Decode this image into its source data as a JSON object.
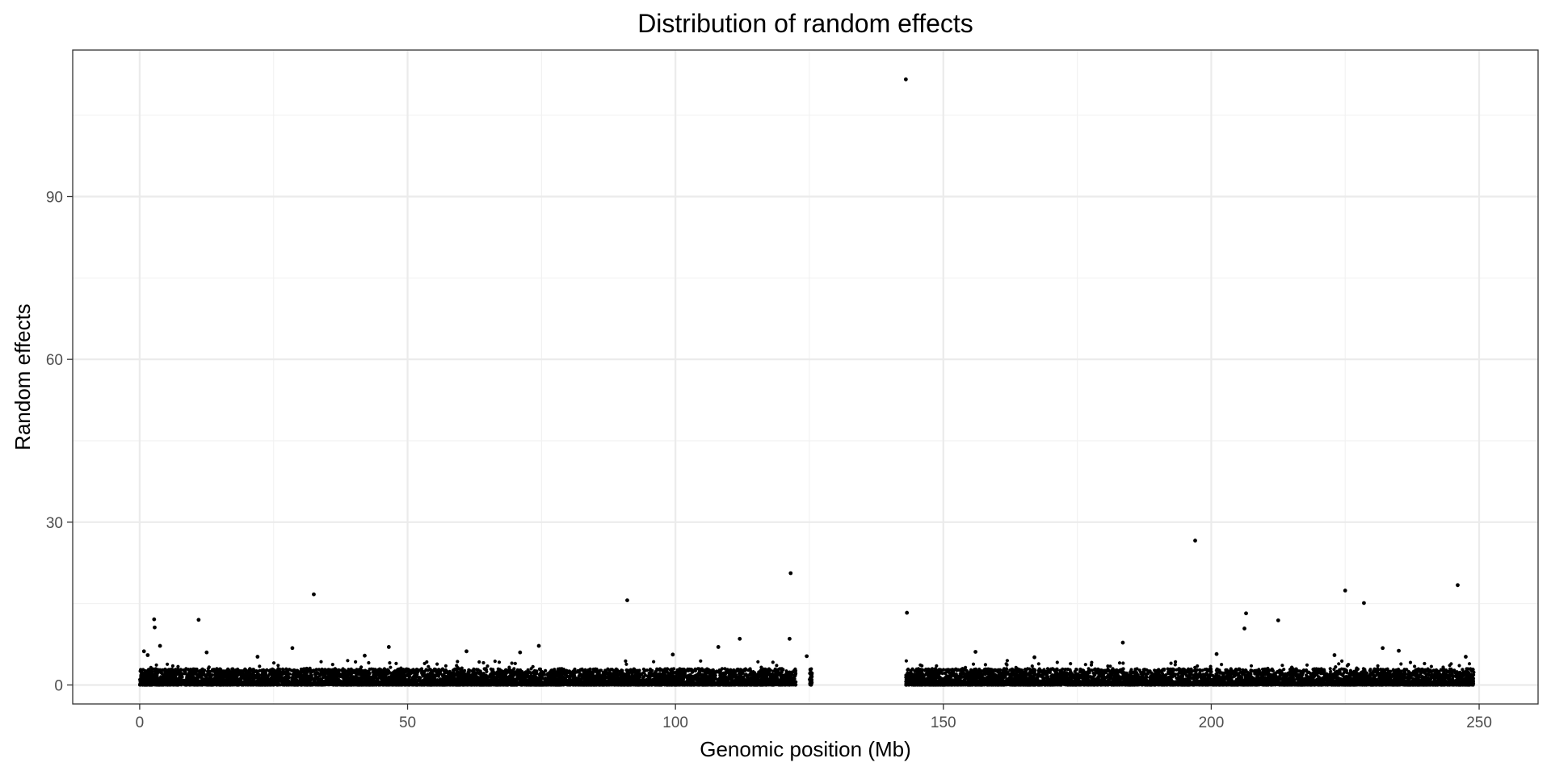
{
  "chart_data": {
    "type": "scatter",
    "title": "Distribution of random effects",
    "xlabel": "Genomic position (Mb)",
    "ylabel": "Random effects",
    "xlim": [
      -12.5,
      261
    ],
    "ylim": [
      -3.5,
      117
    ],
    "x_ticks": [
      0,
      50,
      100,
      150,
      200,
      250
    ],
    "y_ticks": [
      0,
      30,
      60,
      90
    ],
    "x_minor_ticks": [
      25,
      75,
      125,
      175,
      225
    ],
    "y_minor_ticks": [
      15,
      45,
      75,
      105
    ],
    "grid": true,
    "legend": "none",
    "point_color": "#000000",
    "segments_dense": [
      {
        "x_range": [
          0,
          122.5
        ],
        "y_typical_max": 3
      },
      {
        "x_range": [
          125,
          125.5
        ],
        "y_typical_max": 3
      },
      {
        "x_range": [
          143,
          249
        ],
        "y_typical_max": 3
      }
    ],
    "outliers": [
      {
        "x": 143.0,
        "y": 111.6
      },
      {
        "x": 197.0,
        "y": 26.6
      },
      {
        "x": 121.5,
        "y": 20.6
      },
      {
        "x": 246.0,
        "y": 18.4
      },
      {
        "x": 225.0,
        "y": 17.4
      },
      {
        "x": 32.5,
        "y": 16.7
      },
      {
        "x": 91.0,
        "y": 15.6
      },
      {
        "x": 228.5,
        "y": 15.1
      },
      {
        "x": 143.2,
        "y": 13.3
      },
      {
        "x": 206.5,
        "y": 13.2
      },
      {
        "x": 2.7,
        "y": 12.1
      },
      {
        "x": 11.0,
        "y": 12.0
      },
      {
        "x": 212.5,
        "y": 11.9
      },
      {
        "x": 2.8,
        "y": 10.6
      },
      {
        "x": 206.2,
        "y": 10.4
      },
      {
        "x": 112.0,
        "y": 8.5
      },
      {
        "x": 121.3,
        "y": 8.5
      },
      {
        "x": 183.5,
        "y": 7.8
      },
      {
        "x": 3.8,
        "y": 7.2
      },
      {
        "x": 46.5,
        "y": 7.0
      },
      {
        "x": 74.5,
        "y": 7.2
      },
      {
        "x": 108.0,
        "y": 7.0
      },
      {
        "x": 28.5,
        "y": 6.8
      },
      {
        "x": 232.0,
        "y": 6.8
      },
      {
        "x": 0.8,
        "y": 6.2
      },
      {
        "x": 12.5,
        "y": 6.0
      },
      {
        "x": 61.0,
        "y": 6.2
      },
      {
        "x": 71.0,
        "y": 6.0
      },
      {
        "x": 156.0,
        "y": 6.1
      },
      {
        "x": 235.0,
        "y": 6.3
      },
      {
        "x": 1.5,
        "y": 5.5
      },
      {
        "x": 22.0,
        "y": 5.2
      },
      {
        "x": 42.0,
        "y": 5.4
      },
      {
        "x": 99.5,
        "y": 5.6
      },
      {
        "x": 124.5,
        "y": 5.3
      },
      {
        "x": 167.0,
        "y": 5.1
      },
      {
        "x": 201.0,
        "y": 5.7
      },
      {
        "x": 223.0,
        "y": 5.5
      },
      {
        "x": 247.5,
        "y": 5.2
      }
    ]
  }
}
